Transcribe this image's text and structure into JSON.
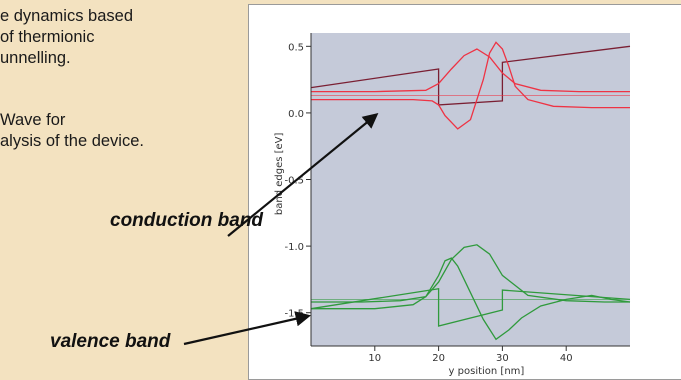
{
  "bullets": {
    "b1_line1": "e dynamics based",
    "b1_line2": "of thermionic",
    "b1_line3": "unnelling.",
    "b2_line1": "Wave for",
    "b2_line2": "alysis of the device."
  },
  "labels": {
    "conduction": "conduction band",
    "valence": "valence band"
  },
  "colors": {
    "background": "#f3e2c0",
    "plot_bg": "#c5cad9",
    "conduction": "#ee3344",
    "conduction_dark": "#7a1f33",
    "valence": "#2f9a3c"
  },
  "chart_data": {
    "type": "line",
    "xlabel": "y position [nm]",
    "ylabel": "band edges [eV]",
    "xlim": [
      0,
      50
    ],
    "ylim": [
      -1.75,
      0.6
    ],
    "x_ticks": [
      10,
      20,
      30,
      40
    ],
    "y_ticks": [
      0.5,
      0.0,
      -0.5,
      -1.0,
      -1.5
    ],
    "y_tick_labels": [
      "0.5",
      "0.0",
      "-0.5",
      "-1.0",
      "-1.5"
    ],
    "series": [
      {
        "group": "conduction",
        "color_key": "conduction_dark",
        "x": [
          0,
          20,
          20,
          30,
          30,
          50
        ],
        "y": [
          0.19,
          0.33,
          0.06,
          0.09,
          0.38,
          0.5
        ]
      },
      {
        "group": "conduction",
        "color_key": "conduction",
        "x": [
          0,
          10,
          18,
          20,
          22,
          24,
          26,
          28,
          30,
          32,
          36,
          42,
          50
        ],
        "y": [
          0.16,
          0.16,
          0.17,
          0.22,
          0.33,
          0.43,
          0.48,
          0.42,
          0.3,
          0.22,
          0.17,
          0.16,
          0.16
        ]
      },
      {
        "group": "conduction",
        "color_key": "conduction",
        "x": [
          0,
          10,
          16,
          19,
          20,
          21,
          23,
          25,
          27,
          28,
          29,
          30,
          31,
          32,
          34,
          38,
          44,
          50
        ],
        "y": [
          0.1,
          0.1,
          0.1,
          0.09,
          0.06,
          -0.02,
          -0.12,
          -0.05,
          0.25,
          0.45,
          0.53,
          0.48,
          0.35,
          0.2,
          0.1,
          0.05,
          0.04,
          0.04
        ]
      },
      {
        "group": "conduction",
        "color_key": "conduction",
        "x": [
          0,
          50
        ],
        "y": [
          0.13,
          0.13
        ]
      },
      {
        "group": "valence",
        "color_key": "valence",
        "x": [
          0,
          20,
          20,
          30,
          30,
          50
        ],
        "y": [
          -1.47,
          -1.32,
          -1.6,
          -1.48,
          -1.33,
          -1.4
        ]
      },
      {
        "group": "valence",
        "color_key": "valence",
        "x": [
          0,
          8,
          14,
          18,
          20,
          22,
          24,
          26,
          28,
          30,
          34,
          40,
          46,
          50
        ],
        "y": [
          -1.42,
          -1.42,
          -1.41,
          -1.38,
          -1.27,
          -1.1,
          -1.01,
          -0.99,
          -1.06,
          -1.22,
          -1.37,
          -1.41,
          -1.42,
          -1.42
        ]
      },
      {
        "group": "valence",
        "color_key": "valence",
        "x": [
          0,
          10,
          16,
          18,
          20,
          21,
          22,
          23,
          25,
          27,
          29,
          31,
          33,
          36,
          40,
          44,
          47,
          50
        ],
        "y": [
          -1.47,
          -1.47,
          -1.44,
          -1.38,
          -1.22,
          -1.11,
          -1.09,
          -1.15,
          -1.35,
          -1.55,
          -1.7,
          -1.63,
          -1.54,
          -1.45,
          -1.4,
          -1.37,
          -1.4,
          -1.42
        ]
      },
      {
        "group": "valence",
        "color_key": "valence",
        "x": [
          0,
          50
        ],
        "y": [
          -1.4,
          -1.4
        ]
      }
    ]
  }
}
